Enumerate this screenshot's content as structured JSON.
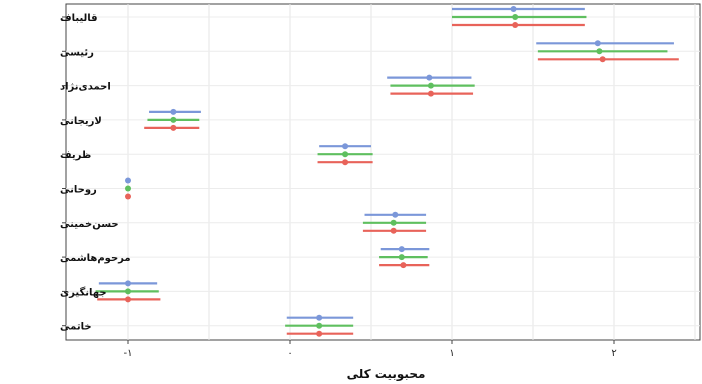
{
  "chart_data": {
    "type": "scatter",
    "title": "",
    "xlabel": "محبوبیت کلی",
    "ylabel": "",
    "xlim": [
      -1.4,
      2.6
    ],
    "xticks": [
      {
        "value": -1,
        "label": "-۱"
      },
      {
        "value": 0,
        "label": "۰"
      },
      {
        "value": 1,
        "label": "۱"
      },
      {
        "value": 2,
        "label": "۲"
      }
    ],
    "grid": true,
    "legend": "none",
    "categories": [
      "قالیباف",
      "رئیسی",
      "احمدی‌نژاد",
      "لاریجانی",
      "ظریف",
      "روحانی",
      "حسن‌خمینی",
      "مرحوم‌هاشمی",
      "جهانگیری",
      "خاتمی"
    ],
    "series": [
      {
        "color": "#7b97d9",
        "points": [
          {
            "est": 1.38,
            "low": 1.0,
            "high": 1.82
          },
          {
            "est": 1.9,
            "low": 1.52,
            "high": 2.37
          },
          {
            "est": 0.86,
            "low": 0.6,
            "high": 1.12
          },
          {
            "est": -0.72,
            "low": -0.87,
            "high": -0.55
          },
          {
            "est": 0.34,
            "low": 0.18,
            "high": 0.5
          },
          {
            "est": -1.0,
            "low": -1.0,
            "high": -1.0
          },
          {
            "est": 0.65,
            "low": 0.46,
            "high": 0.84
          },
          {
            "est": 0.69,
            "low": 0.56,
            "high": 0.86
          },
          {
            "est": -1.0,
            "low": -1.18,
            "high": -0.82
          },
          {
            "est": 0.18,
            "low": -0.02,
            "high": 0.39
          }
        ]
      },
      {
        "color": "#5fbf5f",
        "points": [
          {
            "est": 1.39,
            "low": 1.0,
            "high": 1.83
          },
          {
            "est": 1.91,
            "low": 1.53,
            "high": 2.33
          },
          {
            "est": 0.87,
            "low": 0.62,
            "high": 1.14
          },
          {
            "est": -0.72,
            "low": -0.88,
            "high": -0.56
          },
          {
            "est": 0.34,
            "low": 0.17,
            "high": 0.51
          },
          {
            "est": -1.0,
            "low": -1.0,
            "high": -1.0
          },
          {
            "est": 0.64,
            "low": 0.45,
            "high": 0.84
          },
          {
            "est": 0.69,
            "low": 0.55,
            "high": 0.85
          },
          {
            "est": -1.0,
            "low": -1.2,
            "high": -0.81
          },
          {
            "est": 0.18,
            "low": -0.03,
            "high": 0.39
          }
        ]
      },
      {
        "color": "#e8635a",
        "points": [
          {
            "est": 1.39,
            "low": 1.0,
            "high": 1.82
          },
          {
            "est": 1.93,
            "low": 1.53,
            "high": 2.4
          },
          {
            "est": 0.87,
            "low": 0.62,
            "high": 1.13
          },
          {
            "est": -0.72,
            "low": -0.9,
            "high": -0.56
          },
          {
            "est": 0.34,
            "low": 0.17,
            "high": 0.51
          },
          {
            "est": -1.0,
            "low": -1.0,
            "high": -1.0
          },
          {
            "est": 0.64,
            "low": 0.45,
            "high": 0.84
          },
          {
            "est": 0.7,
            "low": 0.55,
            "high": 0.86
          },
          {
            "est": -1.0,
            "low": -1.19,
            "high": -0.8
          },
          {
            "est": 0.18,
            "low": -0.02,
            "high": 0.39
          }
        ]
      }
    ]
  }
}
